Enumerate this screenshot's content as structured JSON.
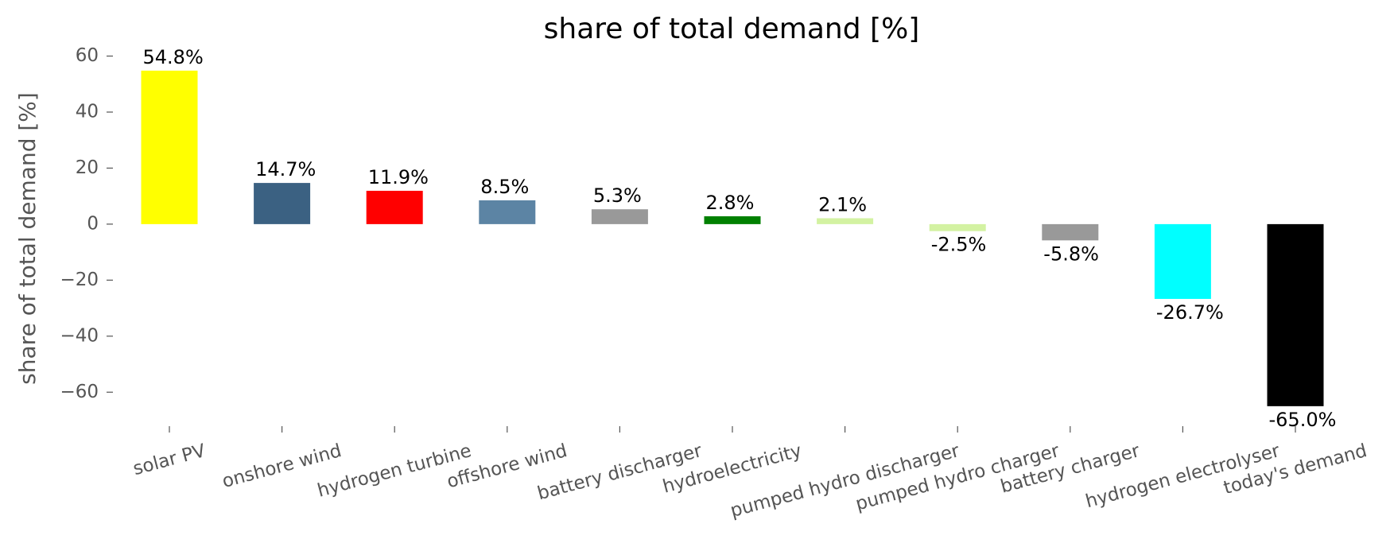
{
  "chart_data": {
    "type": "bar",
    "title": "share of total demand [%]",
    "ylabel": "share of total demand [%]",
    "categories": [
      "solar PV",
      "onshore wind",
      "hydrogen turbine",
      "offshore wind",
      "battery discharger",
      "hydroelectricity",
      "pumped hydro discharger",
      "pumped hydro charger",
      "battery charger",
      "hydrogen electrolyser",
      "today's demand"
    ],
    "values": [
      54.8,
      14.7,
      11.9,
      8.5,
      5.3,
      2.8,
      2.1,
      -2.5,
      -5.8,
      -26.7,
      -65.0
    ],
    "value_labels": [
      "54.8%",
      "14.7%",
      "11.9%",
      "8.5%",
      "5.3%",
      "2.8%",
      "2.1%",
      "-2.5%",
      "-5.8%",
      "-26.7%",
      "-65.0%"
    ],
    "colors": [
      "#ffff00",
      "#3b6182",
      "#ff0000",
      "#5c84a4",
      "#999999",
      "#008000",
      "#d3f2a2",
      "#d3f2a2",
      "#999999",
      "#00ffff",
      "#000000"
    ],
    "ylim": [
      -71,
      61
    ],
    "yticks": [
      {
        "value": -60,
        "label": "−60"
      },
      {
        "value": -40,
        "label": "−40"
      },
      {
        "value": -20,
        "label": "−20"
      },
      0,
      20,
      40,
      60
    ]
  }
}
